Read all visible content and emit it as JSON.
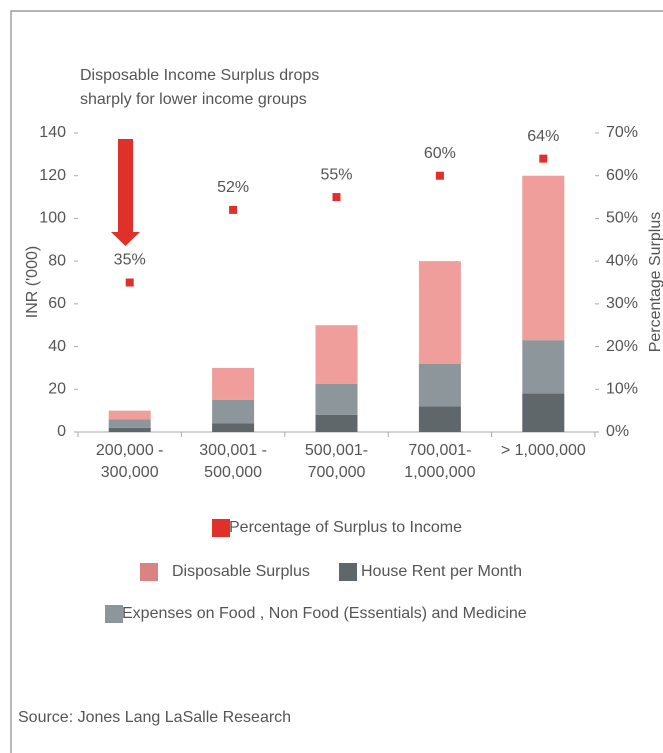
{
  "chart_data": {
    "type": "bar",
    "title": [
      "Disposable Income Surplus drops",
      "sharply for lower income  groups"
    ],
    "ylabel": "INR ('000)",
    "y2label": "Percentage Surplus",
    "source": "Source: Jones Lang LaSalle Research",
    "categories": [
      "200,000 -\n300,000",
      "300,001 -\n500,000",
      "500,001-\n700,000",
      "700,001-\n1,000,000",
      "> 1,000,000"
    ],
    "stacked": true,
    "series": [
      {
        "name": "Percentage of Surplus to Income",
        "color": "#e0302a",
        "type": "scatter",
        "axis": "y2",
        "values": [
          35,
          52,
          55,
          60,
          64
        ],
        "value_labels": [
          "35%",
          "52%",
          "55%",
          "60%",
          "64%"
        ]
      },
      {
        "name": "Disposable Surplus",
        "color": "#ef9e9b",
        "legend_color": "#d98482",
        "values": [
          4,
          15,
          27.5,
          48,
          77
        ]
      },
      {
        "name": "House Rent per Month",
        "color": "#5f676b",
        "values": [
          2,
          4,
          8,
          12,
          18
        ]
      },
      {
        "name": "Expenses on Food , Non Food (Essentials) and Medicine",
        "color": "#8d969b",
        "values": [
          4,
          11,
          14.5,
          20,
          25
        ]
      }
    ],
    "stack_order": [
      2,
      3,
      1
    ],
    "ylim": [
      0,
      140
    ],
    "yticks": [
      0,
      20,
      40,
      60,
      80,
      100,
      120,
      140
    ],
    "y2lim": [
      0,
      70
    ],
    "y2ticks": [
      {
        "value": 0,
        "label": "0%"
      },
      {
        "value": 10,
        "label": "10%"
      },
      {
        "value": 20,
        "label": "20%"
      },
      {
        "value": 30,
        "label": "30%"
      },
      {
        "value": 40,
        "label": "40%"
      },
      {
        "value": 50,
        "label": "50%"
      },
      {
        "value": 60,
        "label": "60%"
      },
      {
        "value": 70,
        "label": "70%"
      }
    ],
    "grid": false
  }
}
